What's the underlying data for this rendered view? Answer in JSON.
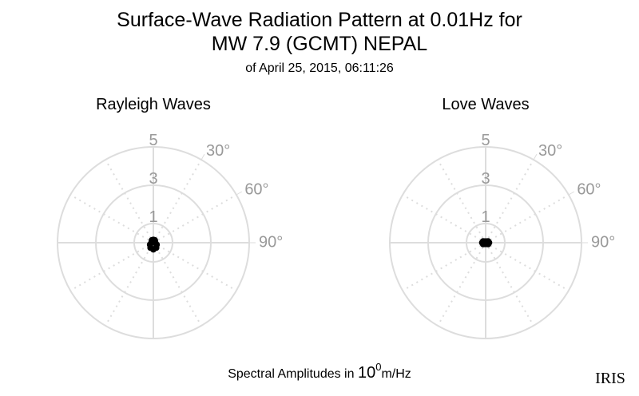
{
  "header": {
    "title": [
      "Surface-Wave Radiation Pattern at 0.01Hz for",
      "MW 7.9 (GCMT) NEPAL"
    ],
    "subtitle": "of April 25, 2015, 06:11:26"
  },
  "chart_data": [
    {
      "type": "polar",
      "title": "Rayleigh Waves",
      "color": "#000000",
      "series": [
        {
          "theta": [
            0,
            30,
            60,
            90,
            120,
            150,
            180,
            210,
            240,
            270,
            300,
            330
          ],
          "r": [
            0.15,
            0.15,
            0.1,
            0.1,
            0.2,
            0.3,
            0.35,
            0.3,
            0.2,
            0.1,
            0.1,
            0.15
          ]
        }
      ],
      "rlim": [
        0,
        5
      ],
      "rticks": [
        1,
        3,
        5
      ],
      "thetaticks": [
        {
          "value": 30,
          "label": "30°"
        },
        {
          "value": 60,
          "label": "60°"
        },
        {
          "value": 90,
          "label": "90°"
        }
      ]
    },
    {
      "type": "polar",
      "title": "Love Waves",
      "color": "#000000",
      "series": [
        {
          "theta": [
            0,
            30,
            60,
            90,
            120,
            150,
            180,
            210,
            240,
            270,
            300,
            330
          ],
          "r": [
            0.05,
            0.08,
            0.15,
            0.18,
            0.15,
            0.08,
            0.05,
            0.08,
            0.15,
            0.18,
            0.15,
            0.08
          ]
        }
      ],
      "rlim": [
        0,
        5
      ],
      "rticks": [
        1,
        3,
        5
      ],
      "thetaticks": [
        {
          "value": 30,
          "label": "30°"
        },
        {
          "value": 60,
          "label": "60°"
        },
        {
          "value": 90,
          "label": "90°"
        }
      ]
    }
  ],
  "footer": {
    "prefix": "Spectral Amplitudes in",
    "base": "10",
    "exponent": "0",
    "unit": "m/Hz"
  },
  "logo": "IRIS"
}
